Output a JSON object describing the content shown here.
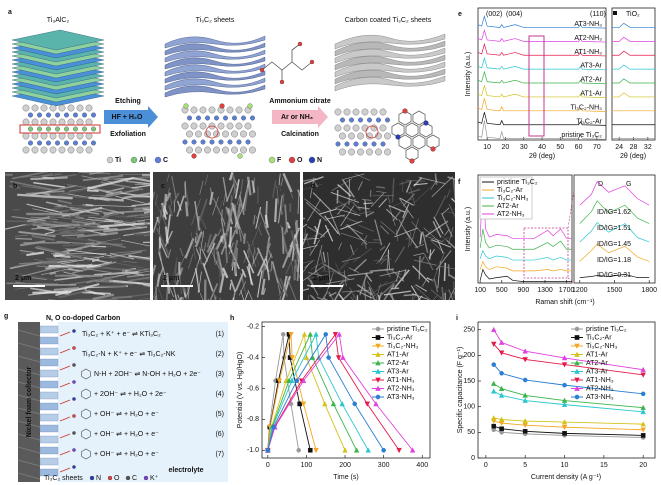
{
  "figure": {
    "panel_a": {
      "label": "a",
      "precursor": "Ti₃AlC₂",
      "sheets": "Ti₃C₂ sheets",
      "coated": "Carbon coated Ti₃C₂ sheets",
      "step1_top": "Etching",
      "step1_box": "HF + H₂O",
      "step1_bottom": "Exfoliation",
      "step2_top": "Ammonium citrate",
      "step2_box": "Ar or NH₃",
      "step2_bottom": "Calcination",
      "legend_1": [
        "Ti",
        "Al",
        "C"
      ],
      "legend_2": [
        "F",
        "O",
        "N"
      ]
    },
    "sem_panels": [
      {
        "label": "b",
        "scale": "2 μm"
      },
      {
        "label": "c",
        "scale": "2 μm"
      },
      {
        "label": "d",
        "scale": "2 μm"
      }
    ],
    "panel_g": {
      "label": "g",
      "coating": "N, O co-doped Carbon",
      "collector": "Nickel foam collector",
      "sheets": "Ti₃C₂ sheets",
      "electrolyte": "electrolyte",
      "legend": [
        "N",
        "O",
        "C",
        "K⁺"
      ],
      "equations": [
        {
          "text": "Ti₃C₂ + K⁺ + e⁻ ⇌ KTi₃C₂",
          "number": "(1)"
        },
        {
          "text": "Ti₃C₂-N + K⁺ + e⁻ ⇌ Ti₃C₂-NK",
          "number": "(2)"
        },
        {
          "text": "N-H + 2OH⁻ ⇌ N-OH + H₂O + 2e⁻",
          "number": "(3)"
        },
        {
          "text": "+ 2OH⁻ ⇌ + H₂O + 2e⁻",
          "number": "(4)"
        },
        {
          "text": "+ OH⁻ ⇌ + H₂O + e⁻",
          "number": "(5)"
        },
        {
          "text": "+ OH⁻ ⇌ + H₂O + e⁻",
          "number": "(6)"
        },
        {
          "text": "+ OH⁻ ⇌ + H₂O + e⁻",
          "number": "(7)"
        }
      ]
    }
  },
  "chart_data": [
    {
      "type": "line",
      "panel_label": "e",
      "xlabel": "2θ (deg)",
      "ylabel": "Intensity (a.u.)",
      "x": [
        5,
        7,
        8.5,
        10,
        17,
        18,
        19,
        25.3,
        30,
        45,
        60,
        61,
        62,
        75
      ],
      "xlim": [
        5,
        75
      ],
      "xticks": [
        10,
        20,
        30,
        40,
        50,
        60,
        70
      ],
      "ylim": [
        0,
        95
      ],
      "series_labels": "inline",
      "annotations": [
        "(002)",
        "(004)",
        "(110)"
      ],
      "series": [
        {
          "name": "AT3-NH₃",
          "color": "#2a7fd4",
          "values": [
            83,
            82,
            89,
            82,
            81,
            83,
            81,
            83,
            81,
            81,
            81,
            83,
            81,
            80.5
          ]
        },
        {
          "name": "AT2-NH₃",
          "color": "#e040e0",
          "values": [
            73,
            72,
            79,
            72,
            71,
            73,
            71,
            73,
            71,
            71,
            71,
            73,
            71,
            70.5
          ]
        },
        {
          "name": "AT1-NH₃",
          "color": "#e6194b",
          "values": [
            63,
            62,
            69,
            62,
            61,
            63,
            61,
            63,
            61,
            61,
            61,
            63,
            61,
            60.5
          ]
        },
        {
          "name": "AT3-Ar",
          "color": "#2bc7d0",
          "values": [
            53,
            52,
            59,
            52,
            51,
            53,
            51,
            53,
            51,
            51,
            51,
            53,
            51,
            50.5
          ]
        },
        {
          "name": "AT2-Ar",
          "color": "#3cb44b",
          "values": [
            43,
            42,
            49,
            42,
            41,
            43,
            41,
            43,
            41,
            41,
            41,
            43,
            41,
            40.5
          ]
        },
        {
          "name": "AT1-Ar",
          "color": "#d4c21a",
          "values": [
            33,
            32,
            39,
            32,
            31,
            33,
            31,
            33,
            31,
            31,
            31,
            33,
            31,
            30.5
          ]
        },
        {
          "name": "Ti₃C₂-NH₃",
          "color": "#f5a623",
          "values": [
            23,
            22,
            30,
            22,
            21,
            24,
            21,
            21,
            21,
            21,
            21,
            23,
            21,
            20.5
          ]
        },
        {
          "name": "Ti₃C₂-Ar",
          "color": "#111111",
          "values": [
            13,
            12,
            20,
            12,
            11,
            14,
            11,
            11,
            11,
            11,
            11,
            13,
            11,
            10.5
          ]
        },
        {
          "name": "pristine Ti₃C₂",
          "color": "#9a9a9a",
          "values": [
            3,
            2,
            14,
            2,
            1,
            6,
            1,
            1,
            1,
            1,
            1,
            4,
            1,
            0.5
          ]
        }
      ]
    },
    {
      "type": "line",
      "xlabel": "2θ (deg)",
      "x": [
        22,
        24,
        25.3,
        27,
        30,
        34
      ],
      "xlim": [
        22,
        34
      ],
      "xticks": [
        24,
        28,
        32
      ],
      "ylim": [
        0,
        95
      ],
      "annotations": [
        "TiO₂"
      ],
      "series": [
        {
          "color": "#2a7fd4",
          "values": [
            81,
            81,
            84,
            81,
            81,
            81
          ]
        },
        {
          "color": "#e040e0",
          "values": [
            71,
            71,
            74,
            71,
            71,
            71
          ]
        },
        {
          "color": "#e6194b",
          "values": [
            61,
            61,
            64,
            61,
            61,
            61
          ]
        },
        {
          "color": "#2bc7d0",
          "values": [
            51,
            51,
            54,
            51,
            51,
            51
          ]
        },
        {
          "color": "#3cb44b",
          "values": [
            41,
            41,
            44,
            41,
            41,
            41
          ]
        },
        {
          "color": "#d4c21a",
          "values": [
            31,
            31,
            34,
            31,
            31,
            31
          ]
        },
        {
          "color": "#f5a623",
          "values": [
            21,
            21,
            21,
            21,
            21,
            21
          ]
        },
        {
          "color": "#111111",
          "values": [
            11,
            11,
            11,
            11,
            11,
            11
          ]
        },
        {
          "color": "#9a9a9a",
          "values": [
            1,
            1,
            1,
            1,
            1,
            1
          ]
        }
      ]
    },
    {
      "type": "line",
      "panel_label": "f",
      "xlabel": "Raman shift (cm⁻¹)",
      "ylabel": "Intensity (a.u.)",
      "x": [
        100,
        150,
        200,
        270,
        400,
        600,
        700,
        900,
        1100,
        1350,
        1450,
        1590,
        1700,
        1800
      ],
      "xlim": [
        60,
        1800
      ],
      "xticks": [
        100,
        500,
        900,
        1300,
        1700
      ],
      "ylim": [
        0,
        80
      ],
      "legend": "upper left",
      "series": [
        {
          "name": "pristine Ti₃C₂",
          "color": "#111111",
          "values": [
            2,
            10,
            6,
            3,
            4,
            5,
            2,
            1,
            1,
            1,
            1,
            1,
            1,
            1
          ]
        },
        {
          "name": "Ti₃C₂-Ar",
          "color": "#f5a623",
          "values": [
            10,
            16,
            12,
            10,
            12,
            11,
            9,
            9,
            9,
            10,
            9,
            10,
            9,
            9
          ]
        },
        {
          "name": "Ti₃C₂-NH₃",
          "color": "#2bc7d0",
          "values": [
            18,
            24,
            20,
            18,
            20,
            19,
            17,
            17,
            17,
            19,
            17,
            19,
            17,
            17
          ]
        },
        {
          "name": "AT2-Ar",
          "color": "#3cb44b",
          "values": [
            26,
            40,
            30,
            26,
            28,
            27,
            25,
            25,
            25,
            30,
            27,
            31,
            25,
            25
          ]
        },
        {
          "name": "AT2-NH₃",
          "color": "#e040e0",
          "values": [
            34,
            75,
            40,
            34,
            36,
            35,
            33,
            33,
            33,
            39,
            35,
            40,
            33,
            33
          ]
        }
      ]
    },
    {
      "type": "line",
      "x": [
        1200,
        1300,
        1350,
        1450,
        1590,
        1700,
        1800
      ],
      "xlim": [
        1150,
        1850
      ],
      "xticks": [
        1200,
        1500,
        1800
      ],
      "ylim": [
        0,
        100
      ],
      "annotations": [
        "D",
        "G",
        "ID/IG=1.62",
        "ID/IG=1.51",
        "ID/IG=1.45",
        "ID/IG=1.18",
        "ID/IG=0.31"
      ],
      "series": [
        {
          "color": "#111111",
          "values": [
            5,
            6,
            7,
            6,
            8,
            5,
            5
          ]
        },
        {
          "color": "#f5a623",
          "values": [
            20,
            30,
            36,
            28,
            34,
            24,
            20
          ]
        },
        {
          "color": "#2bc7d0",
          "values": [
            38,
            48,
            56,
            47,
            55,
            42,
            38
          ]
        },
        {
          "color": "#3cb44b",
          "values": [
            55,
            66,
            76,
            65,
            72,
            60,
            55
          ]
        },
        {
          "color": "#e040e0",
          "values": [
            72,
            82,
            94,
            84,
            90,
            78,
            72
          ]
        }
      ]
    },
    {
      "type": "line",
      "panel_label": "h",
      "xlabel": "Time (s)",
      "ylabel": "Potential (V vs. Hg/HgO)",
      "xlim": [
        -15,
        420
      ],
      "xticks": [
        0,
        100,
        200,
        300,
        400
      ],
      "ylim": [
        -1.05,
        -0.17
      ],
      "yticks": [
        -0.2,
        -0.4,
        -0.6,
        -0.8,
        {
          "value": -1,
          "label": "-1.0"
        }
      ],
      "markers": true,
      "legend": "upper right",
      "series": [
        {
          "name": "pristine Ti₃C₂",
          "color": "#9a9a9a",
          "marker": "circle",
          "x": [
            0,
            4,
            20,
            40,
            42,
            60,
            80
          ],
          "values": [
            -1,
            -0.85,
            -0.55,
            -0.25,
            -0.4,
            -0.7,
            -1
          ]
        },
        {
          "name": "Ti₃C₂-Ar",
          "color": "#111111",
          "marker": "square",
          "x": [
            0,
            5.5,
            27.5,
            55,
            57.8,
            82.5,
            110
          ],
          "values": [
            -1,
            -0.85,
            -0.55,
            -0.25,
            -0.4,
            -0.7,
            -1
          ]
        },
        {
          "name": "Ti₃C₂-NH₃",
          "color": "#f5a623",
          "marker": "triangle-down",
          "x": [
            0,
            6,
            30,
            60,
            63.3,
            92.5,
            125
          ],
          "values": [
            -1,
            -0.85,
            -0.55,
            -0.25,
            -0.4,
            -0.7,
            -1
          ]
        },
        {
          "name": "AT1-Ar",
          "color": "#d4c21a",
          "marker": "triangle",
          "x": [
            0,
            9.5,
            47.5,
            95,
            100.3,
            147.5,
            200
          ],
          "values": [
            -1,
            -0.85,
            -0.55,
            -0.25,
            -0.4,
            -0.7,
            -1
          ]
        },
        {
          "name": "AT2-Ar",
          "color": "#3cb44b",
          "marker": "triangle",
          "x": [
            0,
            11,
            55,
            110,
            116,
            170,
            230
          ],
          "values": [
            -1,
            -0.85,
            -0.55,
            -0.25,
            -0.4,
            -0.7,
            -1
          ]
        },
        {
          "name": "AT3-Ar",
          "color": "#2bc7d0",
          "marker": "triangle",
          "x": [
            0,
            12.5,
            62.5,
            125,
            131.8,
            192.5,
            260
          ],
          "values": [
            -1,
            -0.85,
            -0.55,
            -0.25,
            -0.4,
            -0.7,
            -1
          ]
        },
        {
          "name": "AT1-NH₃",
          "color": "#e6194b",
          "marker": "triangle-down",
          "x": [
            0,
            17.5,
            87.5,
            175,
            183.3,
            257.5,
            340
          ],
          "values": [
            -1,
            -0.85,
            -0.55,
            -0.25,
            -0.4,
            -0.7,
            -1
          ]
        },
        {
          "name": "AT2-NH₃",
          "color": "#e040e0",
          "marker": "triangle",
          "x": [
            0,
            18.5,
            92.5,
            185,
            194.5,
            280,
            375
          ],
          "values": [
            -1,
            -0.85,
            -0.55,
            -0.25,
            -0.4,
            -0.7,
            -1
          ]
        },
        {
          "name": "AT3-NH₃",
          "color": "#2a7fd4",
          "marker": "circle",
          "x": [
            0,
            15,
            75,
            150,
            157.5,
            225,
            300
          ],
          "values": [
            -1,
            -0.85,
            -0.55,
            -0.25,
            -0.4,
            -0.7,
            -1
          ]
        }
      ]
    },
    {
      "type": "line",
      "panel_label": "i",
      "xlabel": "Current density (A g⁻¹)",
      "ylabel": "Specific capacitance (F g⁻¹)",
      "x": [
        1,
        2,
        5,
        10,
        20
      ],
      "xlim": [
        -1,
        21.5
      ],
      "xticks": [
        0,
        5,
        10,
        15,
        20
      ],
      "ylim": [
        0,
        265
      ],
      "yticks": [
        0,
        50,
        100,
        150,
        200,
        250
      ],
      "markers": true,
      "legend": "upper right",
      "series": [
        {
          "name": "pristine Ti₃C₂",
          "color": "#9a9a9a",
          "marker": "circle",
          "values": [
            55,
            50,
            47,
            44,
            40
          ]
        },
        {
          "name": "Ti₃C₂-Ar",
          "color": "#111111",
          "marker": "square",
          "values": [
            62,
            57,
            52,
            48,
            44
          ]
        },
        {
          "name": "Ti₃C₂-NH₃",
          "color": "#f5a623",
          "marker": "triangle-down",
          "values": [
            72,
            68,
            64,
            60,
            55
          ]
        },
        {
          "name": "AT1-Ar",
          "color": "#d4c21a",
          "marker": "triangle",
          "values": [
            78,
            75,
            72,
            70,
            66
          ]
        },
        {
          "name": "AT2-Ar",
          "color": "#3cb44b",
          "marker": "triangle",
          "values": [
            145,
            135,
            122,
            112,
            98
          ]
        },
        {
          "name": "AT3-Ar",
          "color": "#2bc7d0",
          "marker": "triangle",
          "values": [
            130,
            122,
            112,
            104,
            90
          ]
        },
        {
          "name": "AT1-NH₃",
          "color": "#e6194b",
          "marker": "triangle-down",
          "values": [
            222,
            205,
            192,
            182,
            162
          ]
        },
        {
          "name": "AT2-NH₃",
          "color": "#e040e0",
          "marker": "triangle",
          "values": [
            250,
            225,
            208,
            195,
            172
          ]
        },
        {
          "name": "AT3-NH₃",
          "color": "#2a7fd4",
          "marker": "circle",
          "values": [
            182,
            165,
            152,
            142,
            125
          ]
        }
      ]
    }
  ]
}
